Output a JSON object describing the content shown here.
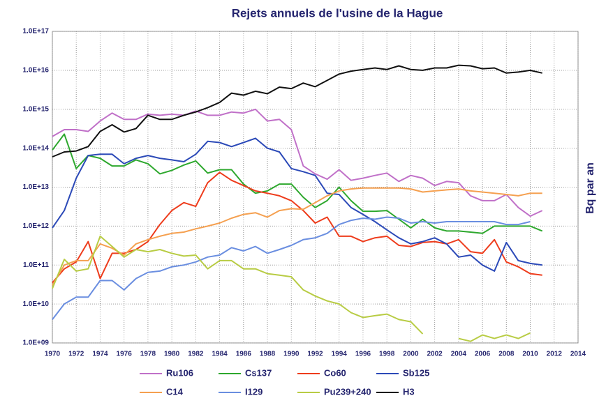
{
  "chart_data": {
    "type": "line",
    "title": "Rejets annuels de l'usine de la Hague",
    "y_label": "Bq par an",
    "log_y": true,
    "grid": true,
    "legend": "bottom",
    "x": [
      1970,
      1971,
      1972,
      1973,
      1974,
      1975,
      1976,
      1977,
      1978,
      1979,
      1980,
      1981,
      1982,
      1983,
      1984,
      1985,
      1986,
      1987,
      1988,
      1989,
      1990,
      1991,
      1992,
      1993,
      1994,
      1995,
      1996,
      1997,
      1998,
      1999,
      2000,
      2001,
      2002,
      2003,
      2004,
      2005,
      2006,
      2007,
      2008,
      2009,
      2010,
      2011
    ],
    "xlim": [
      1970,
      2014
    ],
    "xticks": [
      1970,
      1972,
      1974,
      1976,
      1978,
      1980,
      1982,
      1984,
      1986,
      1988,
      1990,
      1992,
      1994,
      1996,
      1998,
      2000,
      2002,
      2004,
      2006,
      2008,
      2010,
      2012,
      2014
    ],
    "ylim": [
      1000000000.0,
      1e+17
    ],
    "yticks": [
      {
        "value": 1000000000.0,
        "label": "1.0E+09"
      },
      {
        "value": 10000000000.0,
        "label": "1.0E+10"
      },
      {
        "value": 100000000000.0,
        "label": "1.0E+11"
      },
      {
        "value": 1000000000000.0,
        "label": "1.0E+12"
      },
      {
        "value": 10000000000000.0,
        "label": "1.0E+13"
      },
      {
        "value": 100000000000000.0,
        "label": "1.0E+14"
      },
      {
        "value": 1000000000000000.0,
        "label": "1.0E+15"
      },
      {
        "value": 1e+16,
        "label": "1.0E+16"
      },
      {
        "value": 1e+17,
        "label": "1.0E+17"
      }
    ],
    "series": [
      {
        "name": "Ru106",
        "color": "#c070c8",
        "values": [
          200000000000000.0,
          300000000000000.0,
          300000000000000.0,
          270000000000000.0,
          500000000000000.0,
          800000000000000.0,
          550000000000000.0,
          550000000000000.0,
          750000000000000.0,
          700000000000000.0,
          750000000000000.0,
          700000000000000.0,
          900000000000000.0,
          700000000000000.0,
          700000000000000.0,
          850000000000000.0,
          800000000000000.0,
          1000000000000000.0,
          500000000000000.0,
          550000000000000.0,
          300000000000000.0,
          35000000000000.0,
          22000000000000.0,
          16000000000000.0,
          28000000000000.0,
          15000000000000.0,
          17000000000000.0,
          20000000000000.0,
          23000000000000.0,
          14000000000000.0,
          20000000000000.0,
          17000000000000.0,
          11000000000000.0,
          14000000000000.0,
          13000000000000.0,
          6000000000000.0,
          4500000000000.0,
          4500000000000.0,
          6500000000000.0,
          3000000000000.0,
          1800000000000.0,
          2500000000000.0
        ]
      },
      {
        "name": "Cs137",
        "color": "#2ea82e",
        "values": [
          90000000000000.0,
          230000000000000.0,
          30000000000000.0,
          65000000000000.0,
          55000000000000.0,
          35000000000000.0,
          35000000000000.0,
          50000000000000.0,
          40000000000000.0,
          22000000000000.0,
          27000000000000.0,
          37000000000000.0,
          47000000000000.0,
          23000000000000.0,
          28000000000000.0,
          28000000000000.0,
          12000000000000.0,
          7000000000000.0,
          8000000000000.0,
          12000000000000.0,
          12000000000000.0,
          5500000000000.0,
          3000000000000.0,
          4500000000000.0,
          10000000000000.0,
          4500000000000.0,
          2400000000000.0,
          2400000000000.0,
          2500000000000.0,
          1500000000000.0,
          900000000000.0,
          1500000000000.0,
          900000000000.0,
          750000000000.0,
          750000000000.0,
          700000000000.0,
          650000000000.0,
          1000000000000.0,
          1000000000000.0,
          1000000000000.0,
          1000000000000.0,
          750000000000.0
        ]
      },
      {
        "name": "Co60",
        "color": "#ee3c1c",
        "values": [
          35000000000.0,
          80000000000.0,
          120000000000.0,
          400000000000.0,
          45000000000.0,
          200000000000.0,
          200000000000.0,
          250000000000.0,
          400000000000.0,
          1100000000000.0,
          2500000000000.0,
          4000000000000.0,
          3200000000000.0,
          13000000000000.0,
          24000000000000.0,
          15000000000000.0,
          11000000000000.0,
          8000000000000.0,
          7000000000000.0,
          6000000000000.0,
          4500000000000.0,
          2500000000000.0,
          1200000000000.0,
          1700000000000.0,
          550000000000.0,
          550000000000.0,
          400000000000.0,
          500000000000.0,
          550000000000.0,
          320000000000.0,
          300000000000.0,
          380000000000.0,
          400000000000.0,
          350000000000.0,
          450000000000.0,
          220000000000.0,
          200000000000.0,
          450000000000.0,
          120000000000.0,
          90000000000.0,
          60000000000.0,
          55000000000.0
        ]
      },
      {
        "name": "Sb125",
        "color": "#2c4ab8",
        "values": [
          900000000000.0,
          2500000000000.0,
          17000000000000.0,
          65000000000000.0,
          70000000000000.0,
          70000000000000.0,
          40000000000000.0,
          55000000000000.0,
          65000000000000.0,
          55000000000000.0,
          50000000000000.0,
          45000000000000.0,
          70000000000000.0,
          150000000000000.0,
          140000000000000.0,
          110000000000000.0,
          140000000000000.0,
          180000000000000.0,
          100000000000000.0,
          80000000000000.0,
          30000000000000.0,
          25000000000000.0,
          20000000000000.0,
          7000000000000.0,
          6500000000000.0,
          3000000000000.0,
          2000000000000.0,
          1300000000000.0,
          800000000000.0,
          500000000000.0,
          350000000000.0,
          400000000000.0,
          500000000000.0,
          350000000000.0,
          160000000000.0,
          180000000000.0,
          100000000000.0,
          70000000000.0,
          380000000000.0,
          130000000000.0,
          110000000000.0,
          100000000000.0
        ]
      },
      {
        "name": "C14",
        "color": "#f5a050",
        "values": [
          30000000000.0,
          100000000000.0,
          130000000000.0,
          130000000000.0,
          350000000000.0,
          270000000000.0,
          180000000000.0,
          350000000000.0,
          450000000000.0,
          550000000000.0,
          650000000000.0,
          700000000000.0,
          850000000000.0,
          1000000000000.0,
          1200000000000.0,
          1600000000000.0,
          2000000000000.0,
          2200000000000.0,
          1700000000000.0,
          2500000000000.0,
          2800000000000.0,
          2700000000000.0,
          4000000000000.0,
          6000000000000.0,
          8000000000000.0,
          9000000000000.0,
          9500000000000.0,
          9500000000000.0,
          9500000000000.0,
          9500000000000.0,
          9000000000000.0,
          7500000000000.0,
          8000000000000.0,
          8500000000000.0,
          9000000000000.0,
          8000000000000.0,
          7500000000000.0,
          7000000000000.0,
          6500000000000.0,
          6000000000000.0,
          7000000000000.0,
          7000000000000.0
        ]
      },
      {
        "name": "I129",
        "color": "#6a8ee0",
        "values": [
          4000000000.0,
          10000000000.0,
          15000000000.0,
          15000000000.0,
          40000000000.0,
          40000000000.0,
          23000000000.0,
          45000000000.0,
          65000000000.0,
          70000000000.0,
          90000000000.0,
          100000000000.0,
          120000000000.0,
          160000000000.0,
          180000000000.0,
          280000000000.0,
          230000000000.0,
          300000000000.0,
          200000000000.0,
          250000000000.0,
          320000000000.0,
          450000000000.0,
          500000000000.0,
          650000000000.0,
          1100000000000.0,
          1400000000000.0,
          1600000000000.0,
          1500000000000.0,
          1700000000000.0,
          1600000000000.0,
          1200000000000.0,
          1300000000000.0,
          1200000000000.0,
          1300000000000.0,
          1300000000000.0,
          1300000000000.0,
          1300000000000.0,
          1300000000000.0,
          1100000000000.0,
          1100000000000.0,
          1300000000000.0,
          null
        ]
      },
      {
        "name": "Pu239+240",
        "color": "#b8cc44",
        "values": [
          25000000000.0,
          140000000000.0,
          70000000000.0,
          80000000000.0,
          550000000000.0,
          300000000000.0,
          160000000000.0,
          250000000000.0,
          220000000000.0,
          250000000000.0,
          200000000000.0,
          170000000000.0,
          180000000000.0,
          80000000000.0,
          130000000000.0,
          130000000000.0,
          80000000000.0,
          80000000000.0,
          60000000000.0,
          55000000000.0,
          50000000000.0,
          23000000000.0,
          16000000000.0,
          12000000000.0,
          10000000000.0,
          6000000000.0,
          4500000000.0,
          5000000000.0,
          5500000000.0,
          4000000000.0,
          3500000000.0,
          1700000000.0,
          null,
          null,
          1300000000.0,
          1100000000.0,
          1600000000.0,
          1300000000.0,
          1600000000.0,
          1300000000.0,
          1800000000.0,
          null
        ]
      },
      {
        "name": "H3",
        "color": "#111111",
        "values": [
          60000000000000.0,
          80000000000000.0,
          85000000000000.0,
          110000000000000.0,
          270000000000000.0,
          400000000000000.0,
          260000000000000.0,
          320000000000000.0,
          700000000000000.0,
          550000000000000.0,
          550000000000000.0,
          700000000000000.0,
          850000000000000.0,
          1100000000000000.0,
          1500000000000000.0,
          2600000000000000.0,
          2300000000000000.0,
          2900000000000000.0,
          2500000000000000.0,
          3700000000000000.0,
          3400000000000000.0,
          4700000000000000.0,
          3800000000000000.0,
          5500000000000000.0,
          8000000000000000.0,
          9500000000000000.0,
          1.05e+16,
          1.15e+16,
          1.05e+16,
          1.3e+16,
          1.05e+16,
          1e+16,
          1.15e+16,
          1.15e+16,
          1.35e+16,
          1.3e+16,
          1.1e+16,
          1.15e+16,
          8500000000000000.0,
          9000000000000000.0,
          1e+16,
          8500000000000000.0
        ]
      }
    ]
  }
}
